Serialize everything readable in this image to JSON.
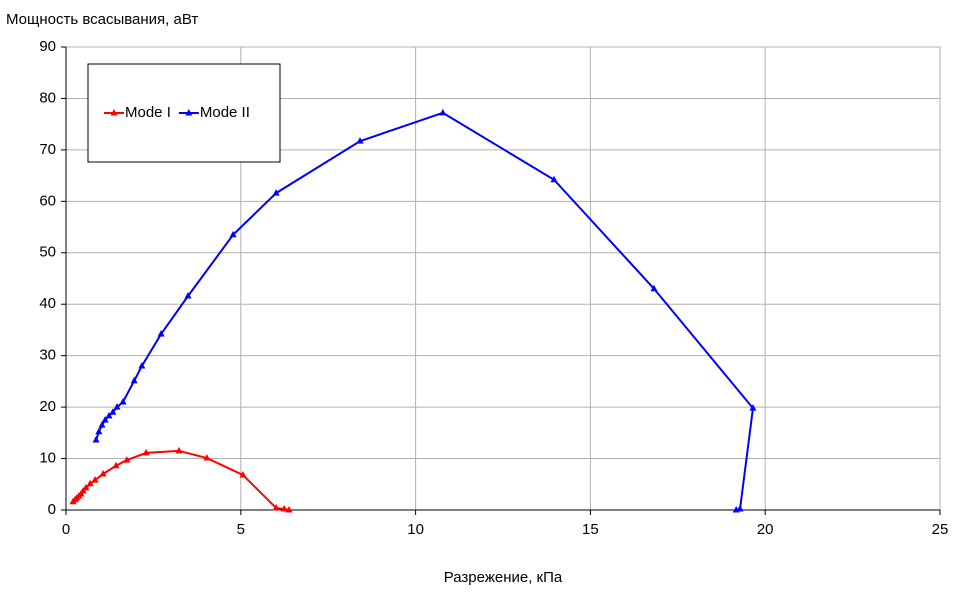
{
  "chart_data": {
    "type": "line",
    "title": "Мощность всасывания, аВт",
    "x_label": "Разрежение, кПа",
    "xlim": [
      0,
      25
    ],
    "xticks": [
      0,
      5,
      10,
      15,
      20,
      25
    ],
    "ylim": [
      0,
      90
    ],
    "yticks": [
      0,
      10,
      20,
      30,
      40,
      50,
      60,
      70,
      80,
      90
    ],
    "grid": true,
    "legend": "upper left",
    "series": [
      {
        "name": "Mode I",
        "color": "#ff0000",
        "x": [
          0.2,
          0.26,
          0.31,
          0.37,
          0.43,
          0.49,
          0.57,
          0.69,
          0.83,
          1.06,
          1.43,
          1.74,
          2.29,
          3.23,
          4.03,
          5.06,
          6.01,
          6.24,
          6.38
        ],
        "values": [
          1.6,
          2.0,
          2.3,
          2.7,
          3.1,
          3.7,
          4.3,
          5.1,
          5.8,
          7.0,
          8.6,
          9.7,
          11.1,
          11.5,
          10.1,
          6.8,
          0.4,
          0.2,
          0
        ]
      },
      {
        "name": "Mode II",
        "color": "#0000ff",
        "x": [
          0.86,
          0.94,
          1.03,
          1.12,
          1.23,
          1.34,
          1.46,
          1.63,
          1.95,
          2.17,
          2.72,
          3.49,
          4.78,
          6.01,
          8.41,
          10.78,
          13.96,
          16.82,
          19.65,
          19.28,
          19.17
        ],
        "values": [
          13.6,
          15.2,
          16.5,
          17.5,
          18.3,
          19.0,
          20.0,
          21.0,
          25.1,
          28.0,
          34.2,
          41.6,
          53.5,
          61.6,
          71.7,
          77.2,
          64.2,
          43.0,
          19.8,
          0.2,
          0
        ]
      }
    ]
  }
}
